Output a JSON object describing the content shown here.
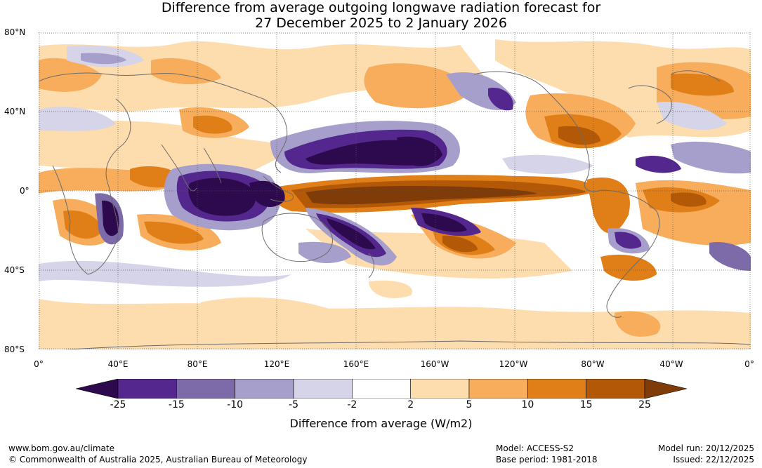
{
  "title_line1": "Difference from average outgoing longwave radiation forecast for",
  "title_line2": "27 December 2025 to 2 January 2026",
  "lat_labels": [
    "80°N",
    "40°N",
    "0°",
    "40°S",
    "80°S"
  ],
  "lon_labels": [
    "0°",
    "40°E",
    "80°E",
    "120°E",
    "160°E",
    "160°W",
    "120°W",
    "80°W",
    "40°W",
    "0°"
  ],
  "colorbar": {
    "ticks": [
      "-25",
      "-15",
      "-10",
      "-5",
      "-2",
      "2",
      "5",
      "10",
      "15",
      "25"
    ],
    "colors": [
      "#2d0a4e",
      "#54278f",
      "#7d6aa9",
      "#a79fcb",
      "#d5d4e8",
      "#ffffff",
      "#fddcae",
      "#f7ad5c",
      "#e07e17",
      "#b35806",
      "#7f3b08"
    ],
    "label": "Difference from average (W/m2)"
  },
  "footer": {
    "website": "www.bom.gov.au/climate",
    "copyright": "© Commonwealth of Australia 2025, Australian Bureau of Meteorology",
    "model": "Model: ACCESS-S2",
    "base_period": "Base period: 1981-2018",
    "model_run": "Model run: 20/12/2025",
    "issued": "Issued: 22/12/2025"
  }
}
